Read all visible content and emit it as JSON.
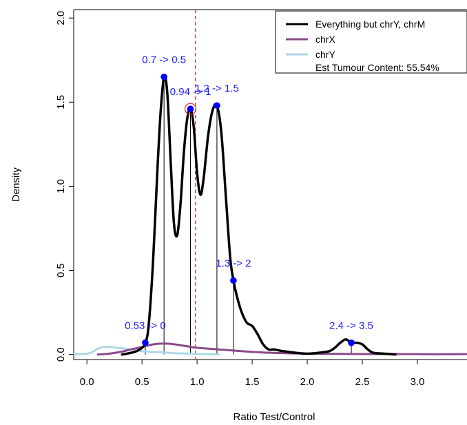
{
  "chart_data": {
    "type": "line",
    "xlabel": "Ratio Test/Control",
    "ylabel": "Density",
    "xlim": [
      -0.12,
      3.45
    ],
    "ylim": [
      -0.03,
      2.05
    ],
    "x_ticks": [
      "0.0",
      "0.5",
      "1.0",
      "1.5",
      "2.0",
      "2.5",
      "3.0"
    ],
    "y_ticks": [
      "0.0",
      "0.5",
      "1.0",
      "1.5",
      "2.0"
    ],
    "reference_line_x": 0.985,
    "colors": {
      "main": "#000000",
      "chrX": "#8a4a8c",
      "chrY": "#add8e6",
      "peaks": "#0000ff",
      "labels": "#1a1aff",
      "reference": "#e8403a",
      "highlight": "#e0302a"
    },
    "legend": {
      "entries": [
        "Everything but chrY, chrM",
        "chrX",
        "chrY"
      ],
      "note": "Est Tumour Content: 55.54%"
    },
    "series": [
      {
        "name": "Everything but chrY, chrM",
        "color": "#000000",
        "x": [
          0.32,
          0.4,
          0.45,
          0.5,
          0.53,
          0.56,
          0.6,
          0.64,
          0.67,
          0.7,
          0.73,
          0.76,
          0.79,
          0.82,
          0.85,
          0.88,
          0.91,
          0.94,
          0.97,
          1.0,
          1.03,
          1.06,
          1.1,
          1.14,
          1.18,
          1.22,
          1.26,
          1.3,
          1.33,
          1.36,
          1.4,
          1.45,
          1.5,
          1.55,
          1.6,
          1.65,
          1.7,
          1.78,
          1.9,
          2.0,
          2.1,
          2.2,
          2.25,
          2.3,
          2.35,
          2.4,
          2.45,
          2.5,
          2.55,
          2.6,
          2.7,
          2.8
        ],
        "y": [
          0.0,
          0.01,
          0.02,
          0.04,
          0.07,
          0.17,
          0.55,
          1.1,
          1.45,
          1.65,
          1.55,
          1.15,
          0.78,
          0.71,
          0.9,
          1.2,
          1.4,
          1.46,
          1.35,
          1.08,
          0.95,
          1.05,
          1.3,
          1.45,
          1.48,
          1.32,
          0.95,
          0.58,
          0.44,
          0.35,
          0.26,
          0.19,
          0.17,
          0.12,
          0.06,
          0.03,
          0.03,
          0.02,
          0.01,
          0.005,
          0.01,
          0.02,
          0.04,
          0.07,
          0.09,
          0.07,
          0.07,
          0.06,
          0.03,
          0.01,
          0.005,
          0.0
        ]
      },
      {
        "name": "chrX",
        "color": "#8a4a8c",
        "x": [
          0.1,
          0.2,
          0.3,
          0.4,
          0.5,
          0.6,
          0.7,
          0.8,
          0.9,
          1.0,
          1.2,
          1.4,
          1.6,
          1.8,
          2.0,
          2.5,
          3.0,
          3.45
        ],
        "y": [
          0.0,
          0.005,
          0.015,
          0.03,
          0.045,
          0.06,
          0.065,
          0.06,
          0.05,
          0.04,
          0.03,
          0.02,
          0.012,
          0.008,
          0.005,
          0.003,
          0.002,
          0.002
        ]
      },
      {
        "name": "chrY",
        "color": "#add8e6",
        "x": [
          -0.12,
          0.0,
          0.05,
          0.1,
          0.15,
          0.2,
          0.25,
          0.3,
          0.4,
          0.5,
          0.6,
          0.7,
          0.8,
          0.9,
          1.0,
          1.1,
          1.2
        ],
        "y": [
          0.0,
          0.005,
          0.015,
          0.035,
          0.045,
          0.045,
          0.042,
          0.038,
          0.03,
          0.02,
          0.015,
          0.012,
          0.008,
          0.006,
          0.004,
          0.002,
          0.0
        ]
      }
    ],
    "peaks": [
      {
        "x": 0.53,
        "y": 0.07,
        "label": "0.53 -> 0"
      },
      {
        "x": 0.7,
        "y": 1.65,
        "label": "0.7 -> 0.5"
      },
      {
        "x": 0.94,
        "y": 1.46,
        "label": "0.94 -> 1",
        "highlight": true
      },
      {
        "x": 1.18,
        "y": 1.48,
        "label": "1.2 -> 1.5"
      },
      {
        "x": 1.33,
        "y": 0.44,
        "label": "1.3 -> 2"
      },
      {
        "x": 2.4,
        "y": 0.07,
        "label": "2.4 -> 3.5"
      }
    ]
  }
}
